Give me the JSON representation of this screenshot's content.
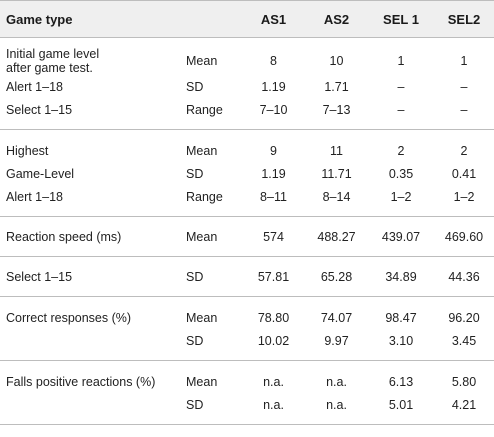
{
  "header": {
    "game_type": "Game type",
    "col_as1": "AS1",
    "col_as2": "AS2",
    "col_sel1": "SEL 1",
    "col_sel2": "SEL2"
  },
  "rows": [
    {
      "label": "Initial game level",
      "label2": "after game test.",
      "stat": "Mean",
      "as1": "8",
      "as2": "10",
      "sel1": "1",
      "sel2": "1"
    },
    {
      "label": "Alert 1–18",
      "stat": "SD",
      "as1": "1.19",
      "as2": "1.71",
      "sel1": "–",
      "sel2": "–"
    },
    {
      "label": "Select 1–15",
      "stat": "Range",
      "as1": "7–10",
      "as2": "7–13",
      "sel1": "–",
      "sel2": "–"
    },
    {
      "label": "Highest",
      "stat": "Mean",
      "as1": "9",
      "as2": "11",
      "sel1": "2",
      "sel2": "2"
    },
    {
      "label": "Game-Level",
      "stat": "SD",
      "as1": "1.19",
      "as2": "11.71",
      "sel1": "0.35",
      "sel2": "0.41"
    },
    {
      "label": "Alert 1–18",
      "stat": "Range",
      "as1": "8–11",
      "as2": "8–14",
      "sel1": "1–2",
      "sel2": "1–2"
    },
    {
      "label": "Reaction speed (ms)",
      "stat": "Mean",
      "as1": "574",
      "as2": "488.27",
      "sel1": "439.07",
      "sel2": "469.60"
    },
    {
      "label": "Select 1–15",
      "stat": "SD",
      "as1": "57.81",
      "as2": "65.28",
      "sel1": "34.89",
      "sel2": "44.36"
    },
    {
      "label": "Correct responses (%)",
      "stat": "Mean",
      "as1": "78.80",
      "as2": "74.07",
      "sel1": "98.47",
      "sel2": "96.20"
    },
    {
      "label": "",
      "stat": "SD",
      "as1": "10.02",
      "as2": "9.97",
      "sel1": "3.10",
      "sel2": "3.45"
    },
    {
      "label": "Falls positive reactions (%)",
      "stat": "Mean",
      "as1": "n.a.",
      "as2": "n.a.",
      "sel1": "6.13",
      "sel2": "5.80"
    },
    {
      "label": "",
      "stat": "SD",
      "as1": "n.a.",
      "as2": "n.a.",
      "sel1": "5.01",
      "sel2": "4.21"
    }
  ]
}
